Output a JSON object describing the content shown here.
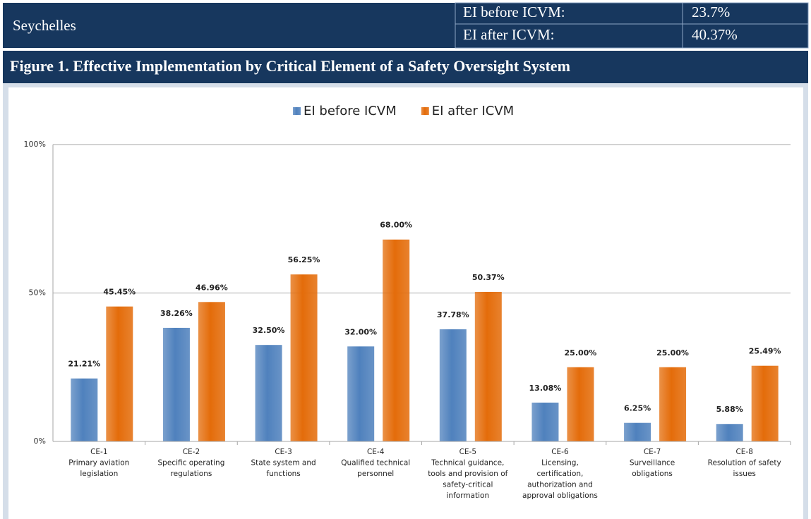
{
  "header": {
    "country": "Seychelles",
    "rows": [
      {
        "label": "EI before ICVM:",
        "value": "23.7%"
      },
      {
        "label": "EI after ICVM:",
        "value": "40.37%"
      }
    ],
    "figure_title": "Figure 1. Effective Implementation by Critical Element of a Safety Oversight System"
  },
  "chart_data": {
    "type": "bar",
    "categories": [
      [
        "CE-1",
        "Primary aviation",
        "legislation"
      ],
      [
        "CE-2",
        "Specific operating",
        "regulations"
      ],
      [
        "CE-3",
        "State system and",
        "functions"
      ],
      [
        "CE-4",
        "Qualified technical",
        "personnel"
      ],
      [
        "CE-5",
        "Technical guidance,",
        "tools and provision of",
        "safety-critical",
        "information"
      ],
      [
        "CE-6",
        "Licensing,",
        "certification,",
        "authorization and",
        "approval obligations"
      ],
      [
        "CE-7",
        "Surveillance",
        "obligations"
      ],
      [
        "CE-8",
        "Resolution of safety",
        "issues"
      ]
    ],
    "series": [
      {
        "name": "EI before ICVM",
        "color": "#4f81bd",
        "values": [
          21.21,
          38.26,
          32.5,
          32.0,
          37.78,
          13.08,
          6.25,
          5.88
        ],
        "value_labels": [
          "21.21%",
          "38.26%",
          "32.50%",
          "32.00%",
          "37.78%",
          "13.08%",
          "6.25%",
          "5.88%"
        ]
      },
      {
        "name": "EI after ICVM",
        "color": "#e46c0a",
        "values": [
          45.45,
          46.96,
          56.25,
          68.0,
          50.37,
          25.0,
          25.0,
          25.49
        ],
        "value_labels": [
          "45.45%",
          "46.96%",
          "56.25%",
          "68.00%",
          "50.37%",
          "25.00%",
          "25.00%",
          "25.49%"
        ]
      }
    ],
    "ylim": [
      0,
      100
    ],
    "yticks": [
      {
        "value": 0,
        "label": "0%"
      },
      {
        "value": 50,
        "label": "50%"
      },
      {
        "value": 100,
        "label": "100%"
      }
    ],
    "grid": true,
    "legend": "top"
  }
}
